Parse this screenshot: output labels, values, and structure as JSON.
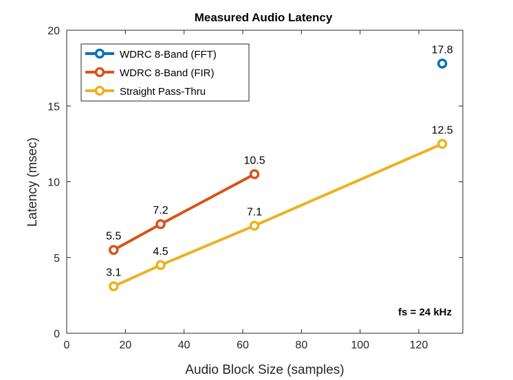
{
  "chart_data": {
    "type": "line",
    "title": "Measured Audio Latency",
    "xlabel": "Audio Block Size (samples)",
    "ylabel": "Latency (msec)",
    "xlim": [
      0,
      135
    ],
    "ylim": [
      0,
      20
    ],
    "xticks": [
      0,
      20,
      40,
      60,
      80,
      100,
      120
    ],
    "yticks": [
      0,
      5,
      10,
      15,
      20
    ],
    "grid": false,
    "legend_position": "top-left",
    "annotation": "fs = 24 kHz",
    "series": [
      {
        "name": "WDRC 8-Band (FFT)",
        "color": "#0072BD",
        "x": [
          128
        ],
        "y": [
          17.8
        ],
        "labels": [
          "17.8"
        ]
      },
      {
        "name": "WDRC 8-Band (FIR)",
        "color": "#D95319",
        "x": [
          16,
          32,
          64
        ],
        "y": [
          5.5,
          7.2,
          10.5
        ],
        "labels": [
          "5.5",
          "7.2",
          "10.5"
        ]
      },
      {
        "name": "Straight Pass-Thru",
        "color": "#EDB120",
        "x": [
          16,
          32,
          64,
          128
        ],
        "y": [
          3.1,
          4.5,
          7.1,
          12.5
        ],
        "labels": [
          "3.1",
          "4.5",
          "7.1",
          "12.5"
        ]
      }
    ]
  }
}
